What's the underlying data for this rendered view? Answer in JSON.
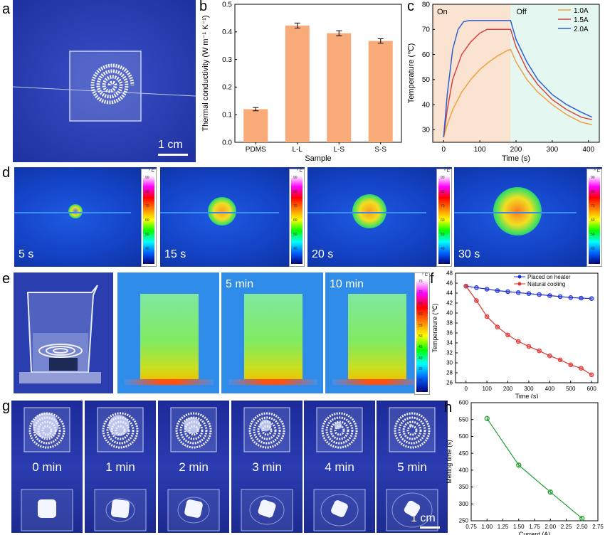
{
  "panel_labels": [
    "a",
    "b",
    "c",
    "d",
    "e",
    "f",
    "g",
    "h"
  ],
  "panel_a": {
    "scale": "1 cm"
  },
  "panel_d": {
    "times": [
      "5 s",
      "15 s",
      "20 s",
      "30 s"
    ],
    "colorbar_unit": "° C",
    "colorbar_ticks": [
      "30",
      "40",
      "50",
      "60",
      "70",
      "80",
      "90"
    ]
  },
  "panel_e": {
    "times": [
      "5 min",
      "10 min"
    ],
    "colorbar_unit": "° C",
    "colorbar_ticks": [
      "75",
      "70",
      "65",
      "60",
      "55",
      "50",
      "45",
      "40",
      "35",
      "30",
      "25"
    ]
  },
  "panel_g": {
    "times": [
      "0 min",
      "1 min",
      "2 min",
      "3 min",
      "4 min",
      "5 min"
    ],
    "scale": "1 cm"
  },
  "chart_data": [
    {
      "id": "b",
      "type": "bar",
      "title": "",
      "xlabel": "Sample",
      "ylabel": "Thermal conductivity (W m⁻¹ K⁻¹)",
      "categories": [
        "PDMS",
        "L-L",
        "L-S",
        "S-S"
      ],
      "values": [
        0.12,
        0.423,
        0.395,
        0.367
      ],
      "errors": [
        0.006,
        0.009,
        0.009,
        0.008
      ],
      "ylim": [
        0,
        0.5
      ],
      "yticks": [
        0.0,
        0.1,
        0.2,
        0.3,
        0.4,
        0.5
      ],
      "color": "#f8aa78"
    },
    {
      "id": "c",
      "type": "line",
      "xlabel": "Time (s)",
      "ylabel": "Temperature (℃)",
      "xlim": [
        -30,
        430
      ],
      "ylim": [
        25,
        80
      ],
      "xticks": [
        0,
        100,
        200,
        300,
        400
      ],
      "yticks": [
        30,
        40,
        50,
        60,
        70,
        80
      ],
      "annotations": [
        "On",
        "Off"
      ],
      "on_off_boundary": 185,
      "on_color": "#fbe3d1",
      "off_color": "#e4f7f1",
      "series": [
        {
          "name": "1.0A",
          "color": "#f0a040",
          "x": [
            0,
            10,
            25,
            50,
            75,
            100,
            125,
            150,
            175,
            185,
            200,
            230,
            260,
            300,
            340,
            380,
            410
          ],
          "y": [
            27,
            32,
            38,
            45,
            50,
            54,
            57,
            59.5,
            61.5,
            62,
            57,
            50,
            45,
            40,
            36,
            33,
            32
          ]
        },
        {
          "name": "1.5A",
          "color": "#d94545",
          "x": [
            0,
            10,
            25,
            50,
            75,
            100,
            120,
            150,
            185,
            200,
            230,
            260,
            300,
            340,
            380,
            410
          ],
          "y": [
            27,
            38,
            50,
            60,
            65,
            68.5,
            70,
            70,
            70,
            63,
            54,
            48,
            42,
            38,
            35,
            34
          ]
        },
        {
          "name": "2.0A",
          "color": "#3060d0",
          "x": [
            0,
            10,
            25,
            40,
            55,
            70,
            100,
            150,
            185,
            200,
            230,
            260,
            300,
            340,
            380,
            410
          ],
          "y": [
            27,
            44,
            62,
            70,
            73,
            73.5,
            73.5,
            73.5,
            73.5,
            66,
            57,
            50,
            44,
            40,
            37,
            35
          ]
        }
      ]
    },
    {
      "id": "f",
      "type": "line",
      "xlabel": "Time (s)",
      "ylabel": "Temperature (℃)",
      "xlim": [
        -50,
        630
      ],
      "ylim": [
        26,
        48
      ],
      "xticks": [
        0,
        100,
        200,
        300,
        400,
        500,
        600
      ],
      "yticks": [
        26,
        28,
        30,
        32,
        34,
        36,
        38,
        40,
        42,
        44,
        46,
        48
      ],
      "legend_position": "top-right",
      "series": [
        {
          "name": "Placed on heater",
          "color": "#2030d0",
          "x": [
            0,
            50,
            100,
            150,
            200,
            250,
            300,
            350,
            400,
            450,
            500,
            550,
            600
          ],
          "y": [
            45.4,
            45.1,
            44.8,
            44.5,
            44.3,
            44.1,
            43.9,
            43.7,
            43.5,
            43.3,
            43.1,
            43.0,
            42.9
          ]
        },
        {
          "name": "Natural cooling",
          "color": "#e03030",
          "x": [
            0,
            50,
            100,
            150,
            200,
            250,
            300,
            350,
            400,
            450,
            500,
            550,
            600
          ],
          "y": [
            45.4,
            42.5,
            39.3,
            37.2,
            35.6,
            34.3,
            33.3,
            32.4,
            31.4,
            30.6,
            29.6,
            28.9,
            27.6
          ]
        }
      ]
    },
    {
      "id": "h",
      "type": "line",
      "xlabel": "Current (A)",
      "ylabel": "Melting time (s)",
      "xlim": [
        0.75,
        2.75
      ],
      "ylim": [
        250,
        600
      ],
      "xticks": [
        0.75,
        1.0,
        1.25,
        1.5,
        1.75,
        2.0,
        2.25,
        2.5,
        2.75
      ],
      "yticks": [
        250,
        300,
        350,
        400,
        450,
        500,
        550,
        600
      ],
      "series": [
        {
          "name": "Melting time",
          "color": "#20a030",
          "x": [
            1.0,
            1.5,
            2.0,
            2.5
          ],
          "y": [
            553,
            415,
            335,
            257
          ],
          "errors": [
            7,
            7,
            7,
            5
          ]
        }
      ]
    }
  ]
}
